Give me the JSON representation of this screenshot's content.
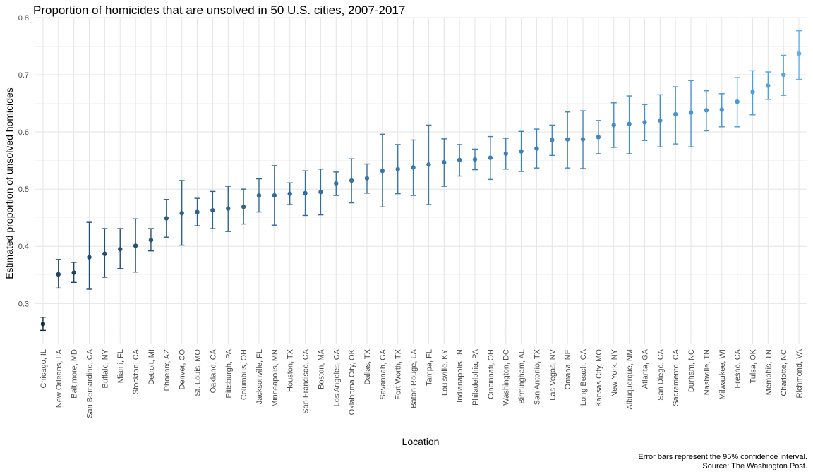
{
  "chart_data": {
    "type": "scatter",
    "title": "Proportion of homicides that are unsolved in 50 U.S. cities, 2007-2017",
    "xlabel": "Location",
    "ylabel": "Estimated proportion of unsolved homicides",
    "ylim": [
      0.23,
      0.8
    ],
    "yticks": [
      "0.3",
      "0.4",
      "0.5",
      "0.6",
      "0.7",
      "0.8"
    ],
    "grid": true,
    "legend": "none",
    "color_low": "#132B43",
    "color_high": "#56B1F7",
    "caption": [
      "Error bars represent the 95% confidence interval.",
      "Source: The Washington Post."
    ],
    "categories": [
      "Chicago, IL",
      "New Orleans, LA",
      "Baltimore, MD",
      "San Bernardino, CA",
      "Buffalo, NY",
      "Miami, FL",
      "Stockton, CA",
      "Detroit, MI",
      "Phoenix, AZ",
      "Denver, CO",
      "St. Louis, MO",
      "Oakland, CA",
      "Pittsburgh, PA",
      "Columbus, OH",
      "Jacksonville, FL",
      "Minneapolis, MN",
      "Houston, TX",
      "San Francisco, CA",
      "Boston, MA",
      "Los Angeles, CA",
      "Oklahoma City, OK",
      "Dallas, TX",
      "Savannah, GA",
      "Fort Worth, TX",
      "Baton Rouge, LA",
      "Tampa, FL",
      "Louisville, KY",
      "Indianapolis, IN",
      "Philadelphia, PA",
      "Cincinnati, OH",
      "Washington, DC",
      "Birmingham, AL",
      "San Antonio, TX",
      "Las Vegas, NV",
      "Omaha, NE",
      "Long Beach, CA",
      "Kansas City, MO",
      "New York, NY",
      "Albuquerque, NM",
      "Atlanta, GA",
      "San Diego, CA",
      "Sacramento, CA",
      "Durham, NC",
      "Nashville, TN",
      "Milwaukee, WI",
      "Fresno, CA",
      "Tulsa, OK",
      "Memphis, TN",
      "Charlotte, NC",
      "Richmond, VA"
    ],
    "estimate": [
      0.264,
      0.351,
      0.354,
      0.381,
      0.387,
      0.395,
      0.401,
      0.411,
      0.449,
      0.458,
      0.46,
      0.463,
      0.466,
      0.469,
      0.489,
      0.489,
      0.492,
      0.493,
      0.495,
      0.51,
      0.515,
      0.519,
      0.532,
      0.535,
      0.538,
      0.543,
      0.547,
      0.551,
      0.552,
      0.555,
      0.562,
      0.566,
      0.571,
      0.586,
      0.587,
      0.587,
      0.591,
      0.612,
      0.614,
      0.617,
      0.62,
      0.631,
      0.634,
      0.638,
      0.639,
      0.653,
      0.67,
      0.681,
      0.7,
      0.737
    ],
    "lower": [
      0.253,
      0.327,
      0.337,
      0.325,
      0.346,
      0.361,
      0.355,
      0.392,
      0.416,
      0.402,
      0.436,
      0.431,
      0.426,
      0.439,
      0.46,
      0.437,
      0.473,
      0.454,
      0.455,
      0.489,
      0.476,
      0.493,
      0.469,
      0.492,
      0.489,
      0.473,
      0.505,
      0.523,
      0.534,
      0.517,
      0.535,
      0.531,
      0.537,
      0.559,
      0.537,
      0.536,
      0.562,
      0.573,
      0.562,
      0.585,
      0.574,
      0.579,
      0.574,
      0.602,
      0.609,
      0.609,
      0.63,
      0.657,
      0.664,
      0.692
    ],
    "upper": [
      0.276,
      0.377,
      0.372,
      0.442,
      0.431,
      0.431,
      0.448,
      0.431,
      0.482,
      0.515,
      0.484,
      0.496,
      0.505,
      0.5,
      0.518,
      0.541,
      0.511,
      0.532,
      0.535,
      0.53,
      0.553,
      0.544,
      0.596,
      0.578,
      0.586,
      0.612,
      0.588,
      0.578,
      0.57,
      0.592,
      0.589,
      0.601,
      0.605,
      0.612,
      0.635,
      0.637,
      0.62,
      0.651,
      0.663,
      0.648,
      0.665,
      0.679,
      0.69,
      0.672,
      0.667,
      0.695,
      0.707,
      0.705,
      0.734,
      0.777
    ]
  }
}
